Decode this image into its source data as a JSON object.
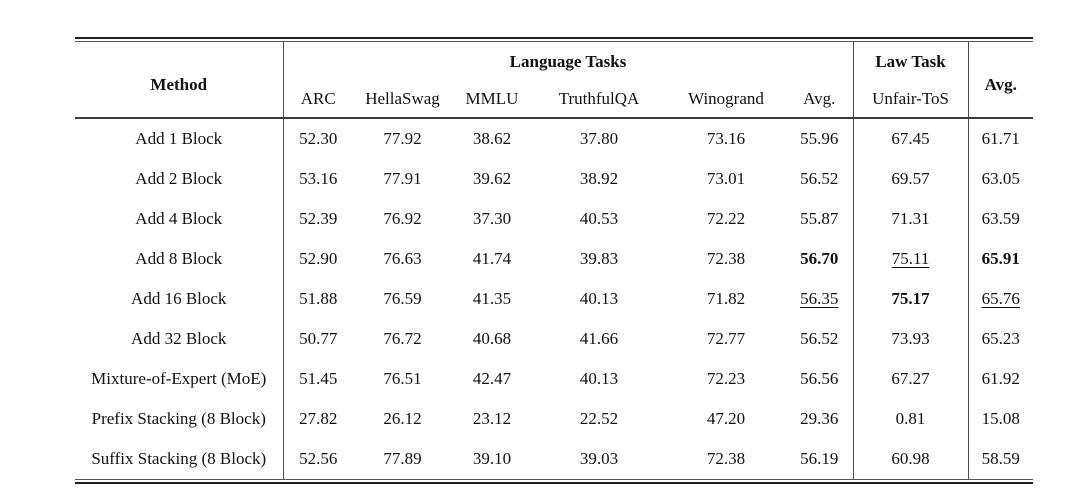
{
  "page": {
    "background_color": "#ffffff",
    "text_color": "#111111",
    "rule_color": "#3c3c3c",
    "separator_color": "#4d4d4d"
  },
  "table": {
    "header": {
      "method": "Method",
      "language_group": "Language Tasks",
      "law_group": "Law Task",
      "avg_group": "Avg.",
      "subcolumns": [
        "ARC",
        "HellaSwag",
        "MMLU",
        "TruthfulQA",
        "Winogrand",
        "Avg."
      ],
      "law_subcolumn": "Unfair-ToS"
    },
    "rows": [
      {
        "method": "Add 1 Block",
        "values": [
          {
            "v": "52.30",
            "style": ""
          },
          {
            "v": "77.92",
            "style": ""
          },
          {
            "v": "38.62",
            "style": ""
          },
          {
            "v": "37.80",
            "style": ""
          },
          {
            "v": "73.16",
            "style": ""
          },
          {
            "v": "55.96",
            "style": ""
          },
          {
            "v": "67.45",
            "style": ""
          },
          {
            "v": "61.71",
            "style": ""
          }
        ]
      },
      {
        "method": "Add 2 Block",
        "values": [
          {
            "v": "53.16",
            "style": ""
          },
          {
            "v": "77.91",
            "style": ""
          },
          {
            "v": "39.62",
            "style": ""
          },
          {
            "v": "38.92",
            "style": ""
          },
          {
            "v": "73.01",
            "style": ""
          },
          {
            "v": "56.52",
            "style": ""
          },
          {
            "v": "69.57",
            "style": ""
          },
          {
            "v": "63.05",
            "style": ""
          }
        ]
      },
      {
        "method": "Add 4 Block",
        "values": [
          {
            "v": "52.39",
            "style": ""
          },
          {
            "v": "76.92",
            "style": ""
          },
          {
            "v": "37.30",
            "style": ""
          },
          {
            "v": "40.53",
            "style": ""
          },
          {
            "v": "72.22",
            "style": ""
          },
          {
            "v": "55.87",
            "style": ""
          },
          {
            "v": "71.31",
            "style": ""
          },
          {
            "v": "63.59",
            "style": ""
          }
        ]
      },
      {
        "method": "Add 8 Block",
        "values": [
          {
            "v": "52.90",
            "style": ""
          },
          {
            "v": "76.63",
            "style": ""
          },
          {
            "v": "41.74",
            "style": ""
          },
          {
            "v": "39.83",
            "style": ""
          },
          {
            "v": "72.38",
            "style": ""
          },
          {
            "v": "56.70",
            "style": "bold"
          },
          {
            "v": "75.11",
            "style": "underline"
          },
          {
            "v": "65.91",
            "style": "bold"
          }
        ]
      },
      {
        "method": "Add 16 Block",
        "values": [
          {
            "v": "51.88",
            "style": ""
          },
          {
            "v": "76.59",
            "style": ""
          },
          {
            "v": "41.35",
            "style": ""
          },
          {
            "v": "40.13",
            "style": ""
          },
          {
            "v": "71.82",
            "style": ""
          },
          {
            "v": "56.35",
            "style": "underline"
          },
          {
            "v": "75.17",
            "style": "bold"
          },
          {
            "v": "65.76",
            "style": "underline"
          }
        ]
      },
      {
        "method": "Add 32 Block",
        "values": [
          {
            "v": "50.77",
            "style": ""
          },
          {
            "v": "76.72",
            "style": ""
          },
          {
            "v": "40.68",
            "style": ""
          },
          {
            "v": "41.66",
            "style": ""
          },
          {
            "v": "72.77",
            "style": ""
          },
          {
            "v": "56.52",
            "style": ""
          },
          {
            "v": "73.93",
            "style": ""
          },
          {
            "v": "65.23",
            "style": ""
          }
        ]
      },
      {
        "method": "Mixture-of-Expert (MoE)",
        "values": [
          {
            "v": "51.45",
            "style": ""
          },
          {
            "v": "76.51",
            "style": ""
          },
          {
            "v": "42.47",
            "style": ""
          },
          {
            "v": "40.13",
            "style": ""
          },
          {
            "v": "72.23",
            "style": ""
          },
          {
            "v": "56.56",
            "style": ""
          },
          {
            "v": "67.27",
            "style": ""
          },
          {
            "v": "61.92",
            "style": ""
          }
        ]
      },
      {
        "method": "Prefix Stacking (8 Block)",
        "values": [
          {
            "v": "27.82",
            "style": ""
          },
          {
            "v": "26.12",
            "style": ""
          },
          {
            "v": "23.12",
            "style": ""
          },
          {
            "v": "22.52",
            "style": ""
          },
          {
            "v": "47.20",
            "style": ""
          },
          {
            "v": "29.36",
            "style": ""
          },
          {
            "v": "0.81",
            "style": ""
          },
          {
            "v": "15.08",
            "style": ""
          }
        ]
      },
      {
        "method": "Suffix Stacking (8 Block)",
        "values": [
          {
            "v": "52.56",
            "style": ""
          },
          {
            "v": "77.89",
            "style": ""
          },
          {
            "v": "39.10",
            "style": ""
          },
          {
            "v": "39.03",
            "style": ""
          },
          {
            "v": "72.38",
            "style": ""
          },
          {
            "v": "56.19",
            "style": ""
          },
          {
            "v": "60.98",
            "style": ""
          },
          {
            "v": "58.59",
            "style": ""
          }
        ]
      }
    ]
  }
}
